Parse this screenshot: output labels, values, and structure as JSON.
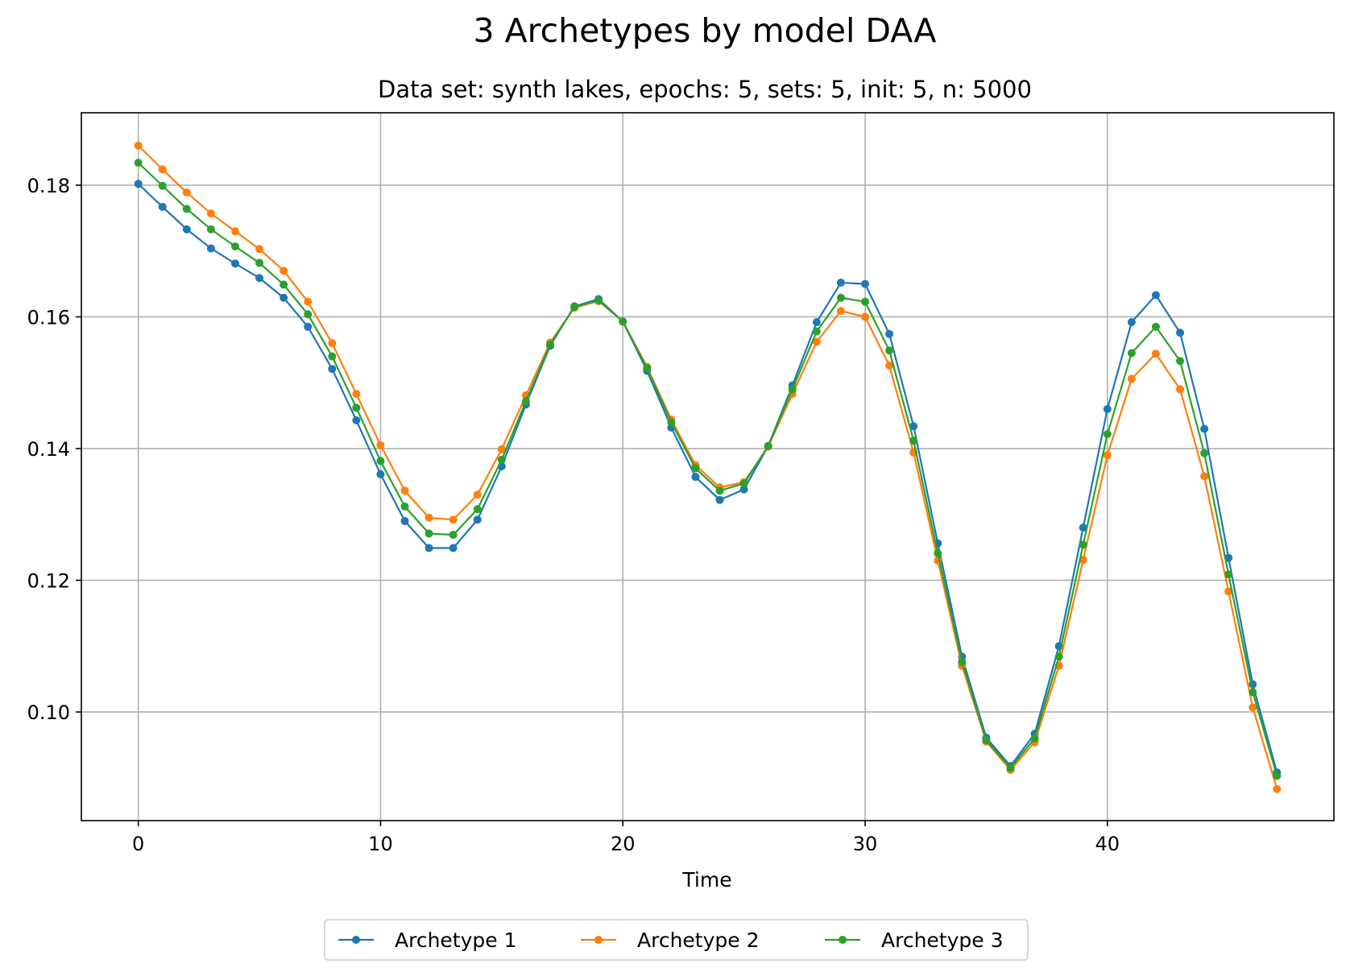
{
  "chart_data": {
    "type": "line",
    "title": "3 Archetypes by model DAA",
    "subtitle": "Data set: synth lakes, epochs: 5, sets: 5, init: 5, n: 5000",
    "xlabel": "Time",
    "ylabel": "",
    "xlim": [
      -2.35,
      49.35
    ],
    "ylim": [
      0.0835,
      0.191
    ],
    "xticks": [
      0,
      10,
      20,
      30,
      40
    ],
    "xtick_labels": [
      "0",
      "10",
      "20",
      "30",
      "40"
    ],
    "yticks": [
      0.1,
      0.12,
      0.14,
      0.16,
      0.18
    ],
    "ytick_labels": [
      "0.10",
      "0.12",
      "0.14",
      "0.16",
      "0.18"
    ],
    "grid": true,
    "legend_position": "bottom-center",
    "x": [
      0,
      1,
      2,
      3,
      4,
      5,
      6,
      7,
      8,
      9,
      10,
      11,
      12,
      13,
      14,
      15,
      16,
      17,
      18,
      19,
      20,
      21,
      22,
      23,
      24,
      25,
      26,
      27,
      28,
      29,
      30,
      31,
      32,
      33,
      34,
      35,
      36,
      37,
      38,
      39,
      40,
      41,
      42,
      43,
      44,
      45,
      46,
      47
    ],
    "series": [
      {
        "name": "Archetype 1",
        "color": "#1f77b4",
        "values": [
          0.1802,
          0.1767,
          0.1733,
          0.1704,
          0.1681,
          0.1659,
          0.1629,
          0.1585,
          0.1521,
          0.1443,
          0.1361,
          0.129,
          0.1249,
          0.1249,
          0.1292,
          0.1373,
          0.1467,
          0.1556,
          0.1616,
          0.1627,
          0.1593,
          0.1518,
          0.1432,
          0.1357,
          0.1322,
          0.1338,
          0.1404,
          0.1496,
          0.1592,
          0.1652,
          0.165,
          0.1574,
          0.1434,
          0.1256,
          0.1084,
          0.0961,
          0.0918,
          0.0967,
          0.11,
          0.128,
          0.146,
          0.1592,
          0.1633,
          0.1576,
          0.143,
          0.1234,
          0.1042,
          0.0908
        ]
      },
      {
        "name": "Archetype 2",
        "color": "#ff7f0e",
        "values": [
          0.186,
          0.1824,
          0.1789,
          0.1757,
          0.173,
          0.1703,
          0.167,
          0.1623,
          0.156,
          0.1483,
          0.1405,
          0.1336,
          0.1295,
          0.1292,
          0.133,
          0.1399,
          0.1481,
          0.1561,
          0.1614,
          0.1624,
          0.1593,
          0.1524,
          0.1444,
          0.1375,
          0.1341,
          0.1349,
          0.1403,
          0.1483,
          0.1562,
          0.1609,
          0.16,
          0.1526,
          0.1394,
          0.123,
          0.107,
          0.0955,
          0.0912,
          0.0954,
          0.107,
          0.1231,
          0.139,
          0.1506,
          0.1544,
          0.149,
          0.1358,
          0.1183,
          0.1007,
          0.0883
        ]
      },
      {
        "name": "Archetype 3",
        "color": "#2ca02c",
        "values": [
          0.1834,
          0.1799,
          0.1764,
          0.1733,
          0.1707,
          0.1682,
          0.1649,
          0.1604,
          0.154,
          0.1462,
          0.1381,
          0.1312,
          0.1271,
          0.1269,
          0.1308,
          0.1383,
          0.1472,
          0.1558,
          0.1615,
          0.1625,
          0.1593,
          0.1522,
          0.144,
          0.137,
          0.1336,
          0.1347,
          0.1404,
          0.149,
          0.1578,
          0.1629,
          0.1623,
          0.1549,
          0.1412,
          0.1241,
          0.1076,
          0.0957,
          0.0915,
          0.096,
          0.1084,
          0.1254,
          0.1422,
          0.1545,
          0.1585,
          0.1533,
          0.1393,
          0.1209,
          0.103,
          0.0903
        ]
      }
    ]
  }
}
